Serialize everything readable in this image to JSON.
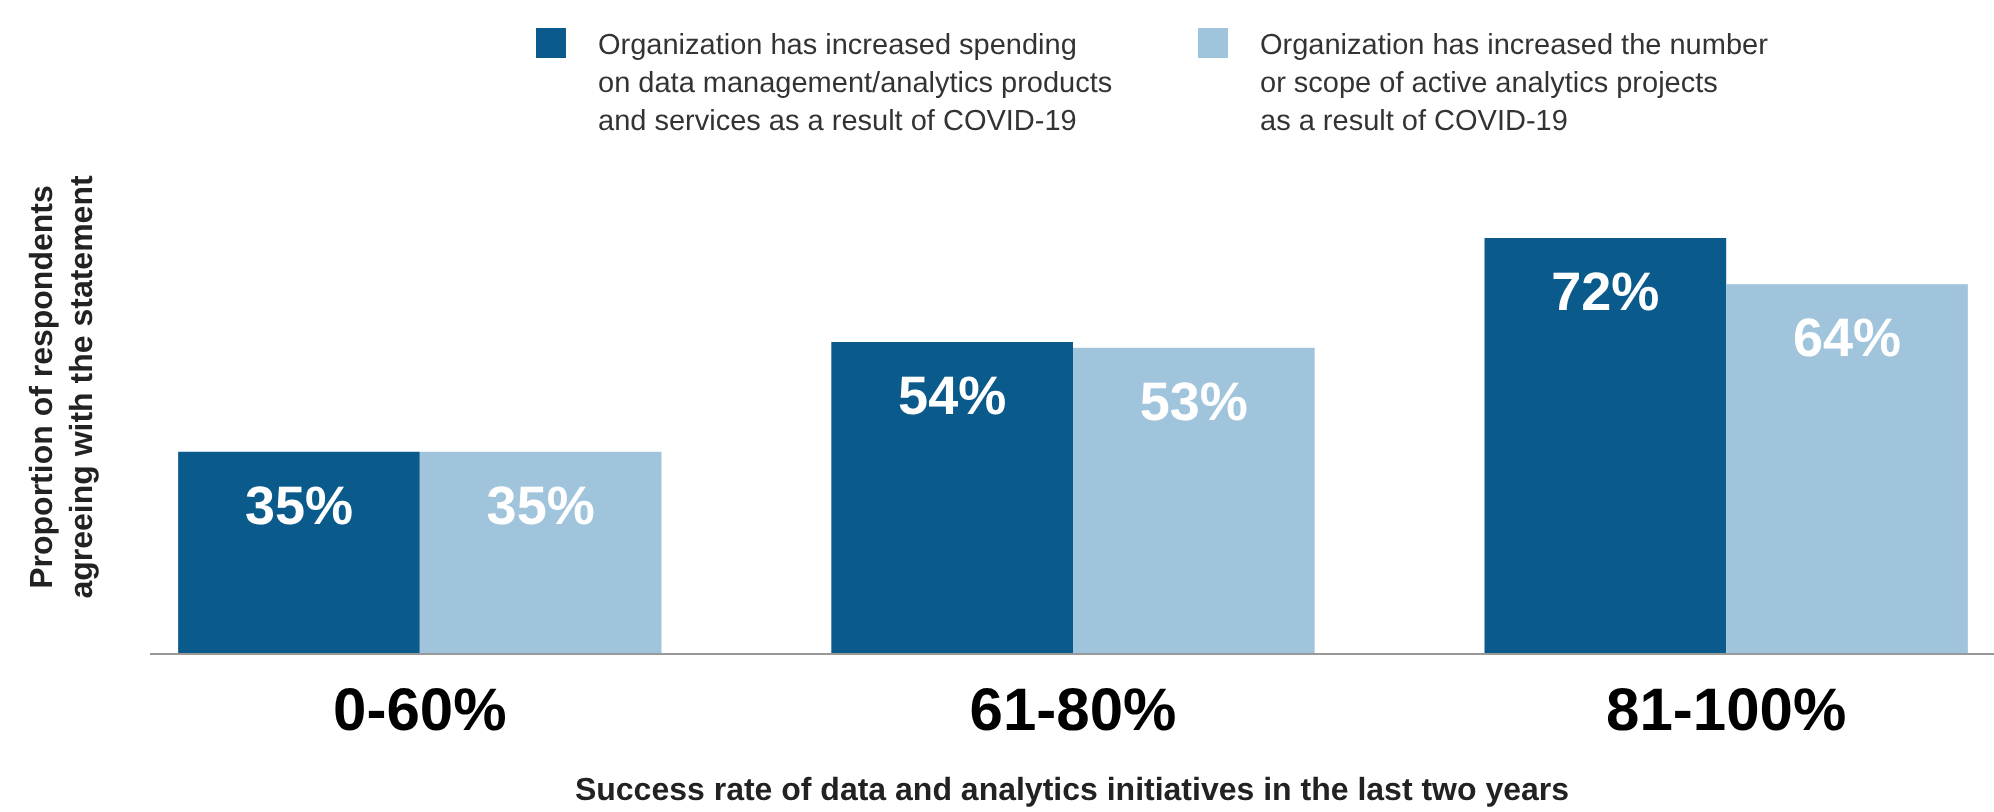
{
  "chart_data": {
    "type": "bar",
    "xlabel": "Success rate of data and analytics initiatives in the last two years",
    "ylabel": "Proportion of respondents agreeing with the statement",
    "categories": [
      "0-60%",
      "61-80%",
      "81-100%"
    ],
    "series": [
      {
        "name": "Organization has increased spending on data management/analytics products and services as a result of COVID-19",
        "color": "#0b5a8c",
        "values": [
          35,
          54,
          72
        ],
        "value_labels": [
          "35%",
          "54%",
          "72%"
        ]
      },
      {
        "name": "Organization has increased the number or scope of active analytics projects as a result of COVID-19",
        "color": "#a0c4dc",
        "values": [
          35,
          53,
          64
        ],
        "value_labels": [
          "35%",
          "53%",
          "64%"
        ]
      }
    ],
    "legend": "top"
  }
}
